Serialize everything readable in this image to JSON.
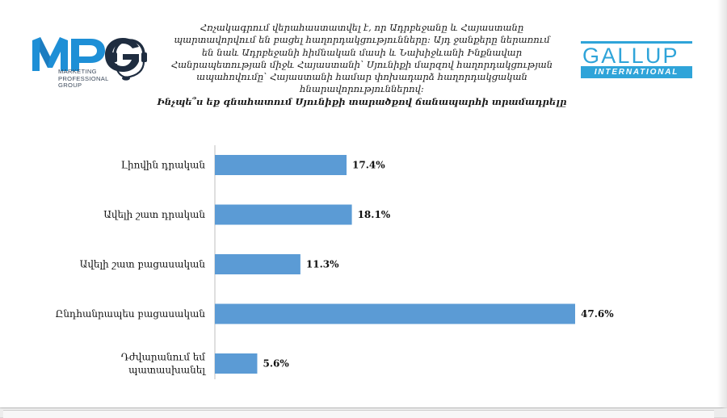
{
  "title_lines": [
    "Հռչակագրում վերահաստատվել է, որ Ադրբեջանը և Հայաստանը",
    "պարտավորվում են բացել հաղորդակցությունները։ Այդ ջանքերը ներառում",
    "են նաև Ադրբեջանի հիմնական մասի և Նախիջևանի Ինքնավար",
    "Հանրապետության միջև Հայաստանի՝ Սյունիքի մարզով հաղորդակցության",
    "ապահովումը՝ Հայաստանի համար փոխադարձ հաղորդակցական",
    "հնարավորություններով։",
    "Ինչպե՞ս եք գնահատում Սյունիքի տարածքով ճանապարհի տրամադրելը"
  ],
  "logos": {
    "mpg": {
      "letters": "MPG",
      "subtitle_lines": [
        "MARKETING",
        "PROFESSIONAL",
        "GROUP"
      ],
      "color": "#1e8fd6",
      "dark_color": "#1f2d40"
    },
    "gallup": {
      "word": "GALLUP",
      "band": "INTERNATIONAL",
      "color": "#2fa4d9"
    }
  },
  "chart_data": {
    "type": "bar",
    "orientation": "horizontal",
    "categories": [
      [
        "Լիովին դրական"
      ],
      [
        "Ավելի շատ դրական"
      ],
      [
        "Ավելի շատ բացասական"
      ],
      [
        "Ընդհանրապես բացասական"
      ],
      [
        "Դժվարանում եմ",
        "պատասխանել"
      ]
    ],
    "values": [
      17.4,
      18.1,
      11.3,
      47.6,
      5.6
    ],
    "value_labels": [
      "17.4%",
      "18.1%",
      "11.3%",
      "47.6%",
      "5.6%"
    ],
    "unit": "%",
    "xlim": [
      0,
      47.6
    ],
    "bar_color": "#5b9bd5",
    "grid": false,
    "legend": "none"
  }
}
